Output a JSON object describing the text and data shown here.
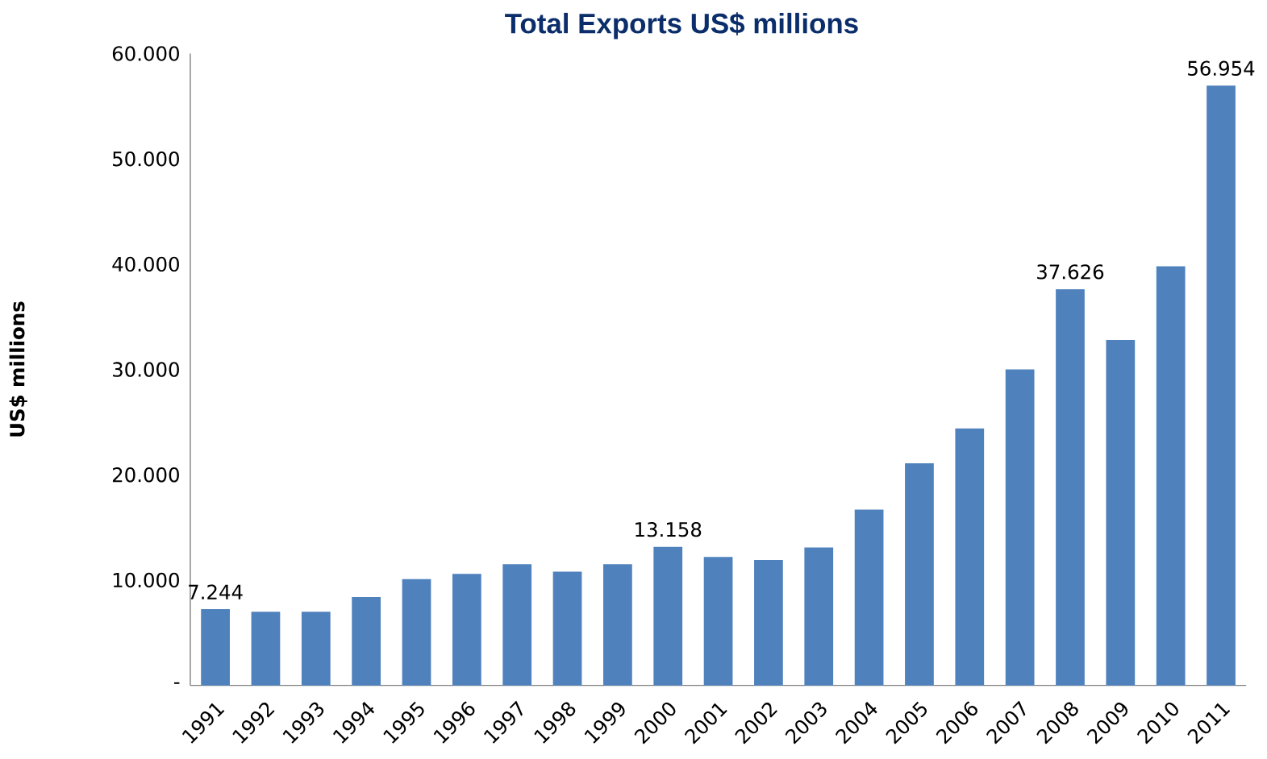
{
  "chart_data": {
    "type": "bar",
    "title": "Total Exports US$ millions",
    "ylabel": "US$ millions",
    "categories": [
      "1991",
      "1992",
      "1993",
      "1994",
      "1995",
      "1996",
      "1997",
      "1998",
      "1999",
      "2000",
      "2001",
      "2002",
      "2003",
      "2004",
      "2005",
      "2006",
      "2007",
      "2008",
      "2009",
      "2010",
      "2011"
    ],
    "values": [
      7244,
      7000,
      7000,
      8400,
      10100,
      10600,
      11500,
      10800,
      11500,
      13158,
      12200,
      11900,
      13100,
      16700,
      21100,
      24400,
      30000,
      37626,
      32800,
      39800,
      56954
    ],
    "value_labels": [
      "7.244",
      null,
      null,
      null,
      null,
      null,
      null,
      null,
      null,
      "13.158",
      null,
      null,
      null,
      null,
      null,
      null,
      null,
      "37.626",
      null,
      null,
      "56.954"
    ],
    "color": "#4f81bd",
    "ylim": [
      0,
      60000
    ],
    "yticks": [
      {
        "value": 0,
        "label": "-"
      },
      {
        "value": 10000,
        "label": "10.000"
      },
      {
        "value": 20000,
        "label": "20.000"
      },
      {
        "value": 30000,
        "label": "30.000"
      },
      {
        "value": 40000,
        "label": "40.000"
      },
      {
        "value": 50000,
        "label": "50.000"
      },
      {
        "value": 60000,
        "label": "60.000"
      }
    ],
    "grid": false
  }
}
